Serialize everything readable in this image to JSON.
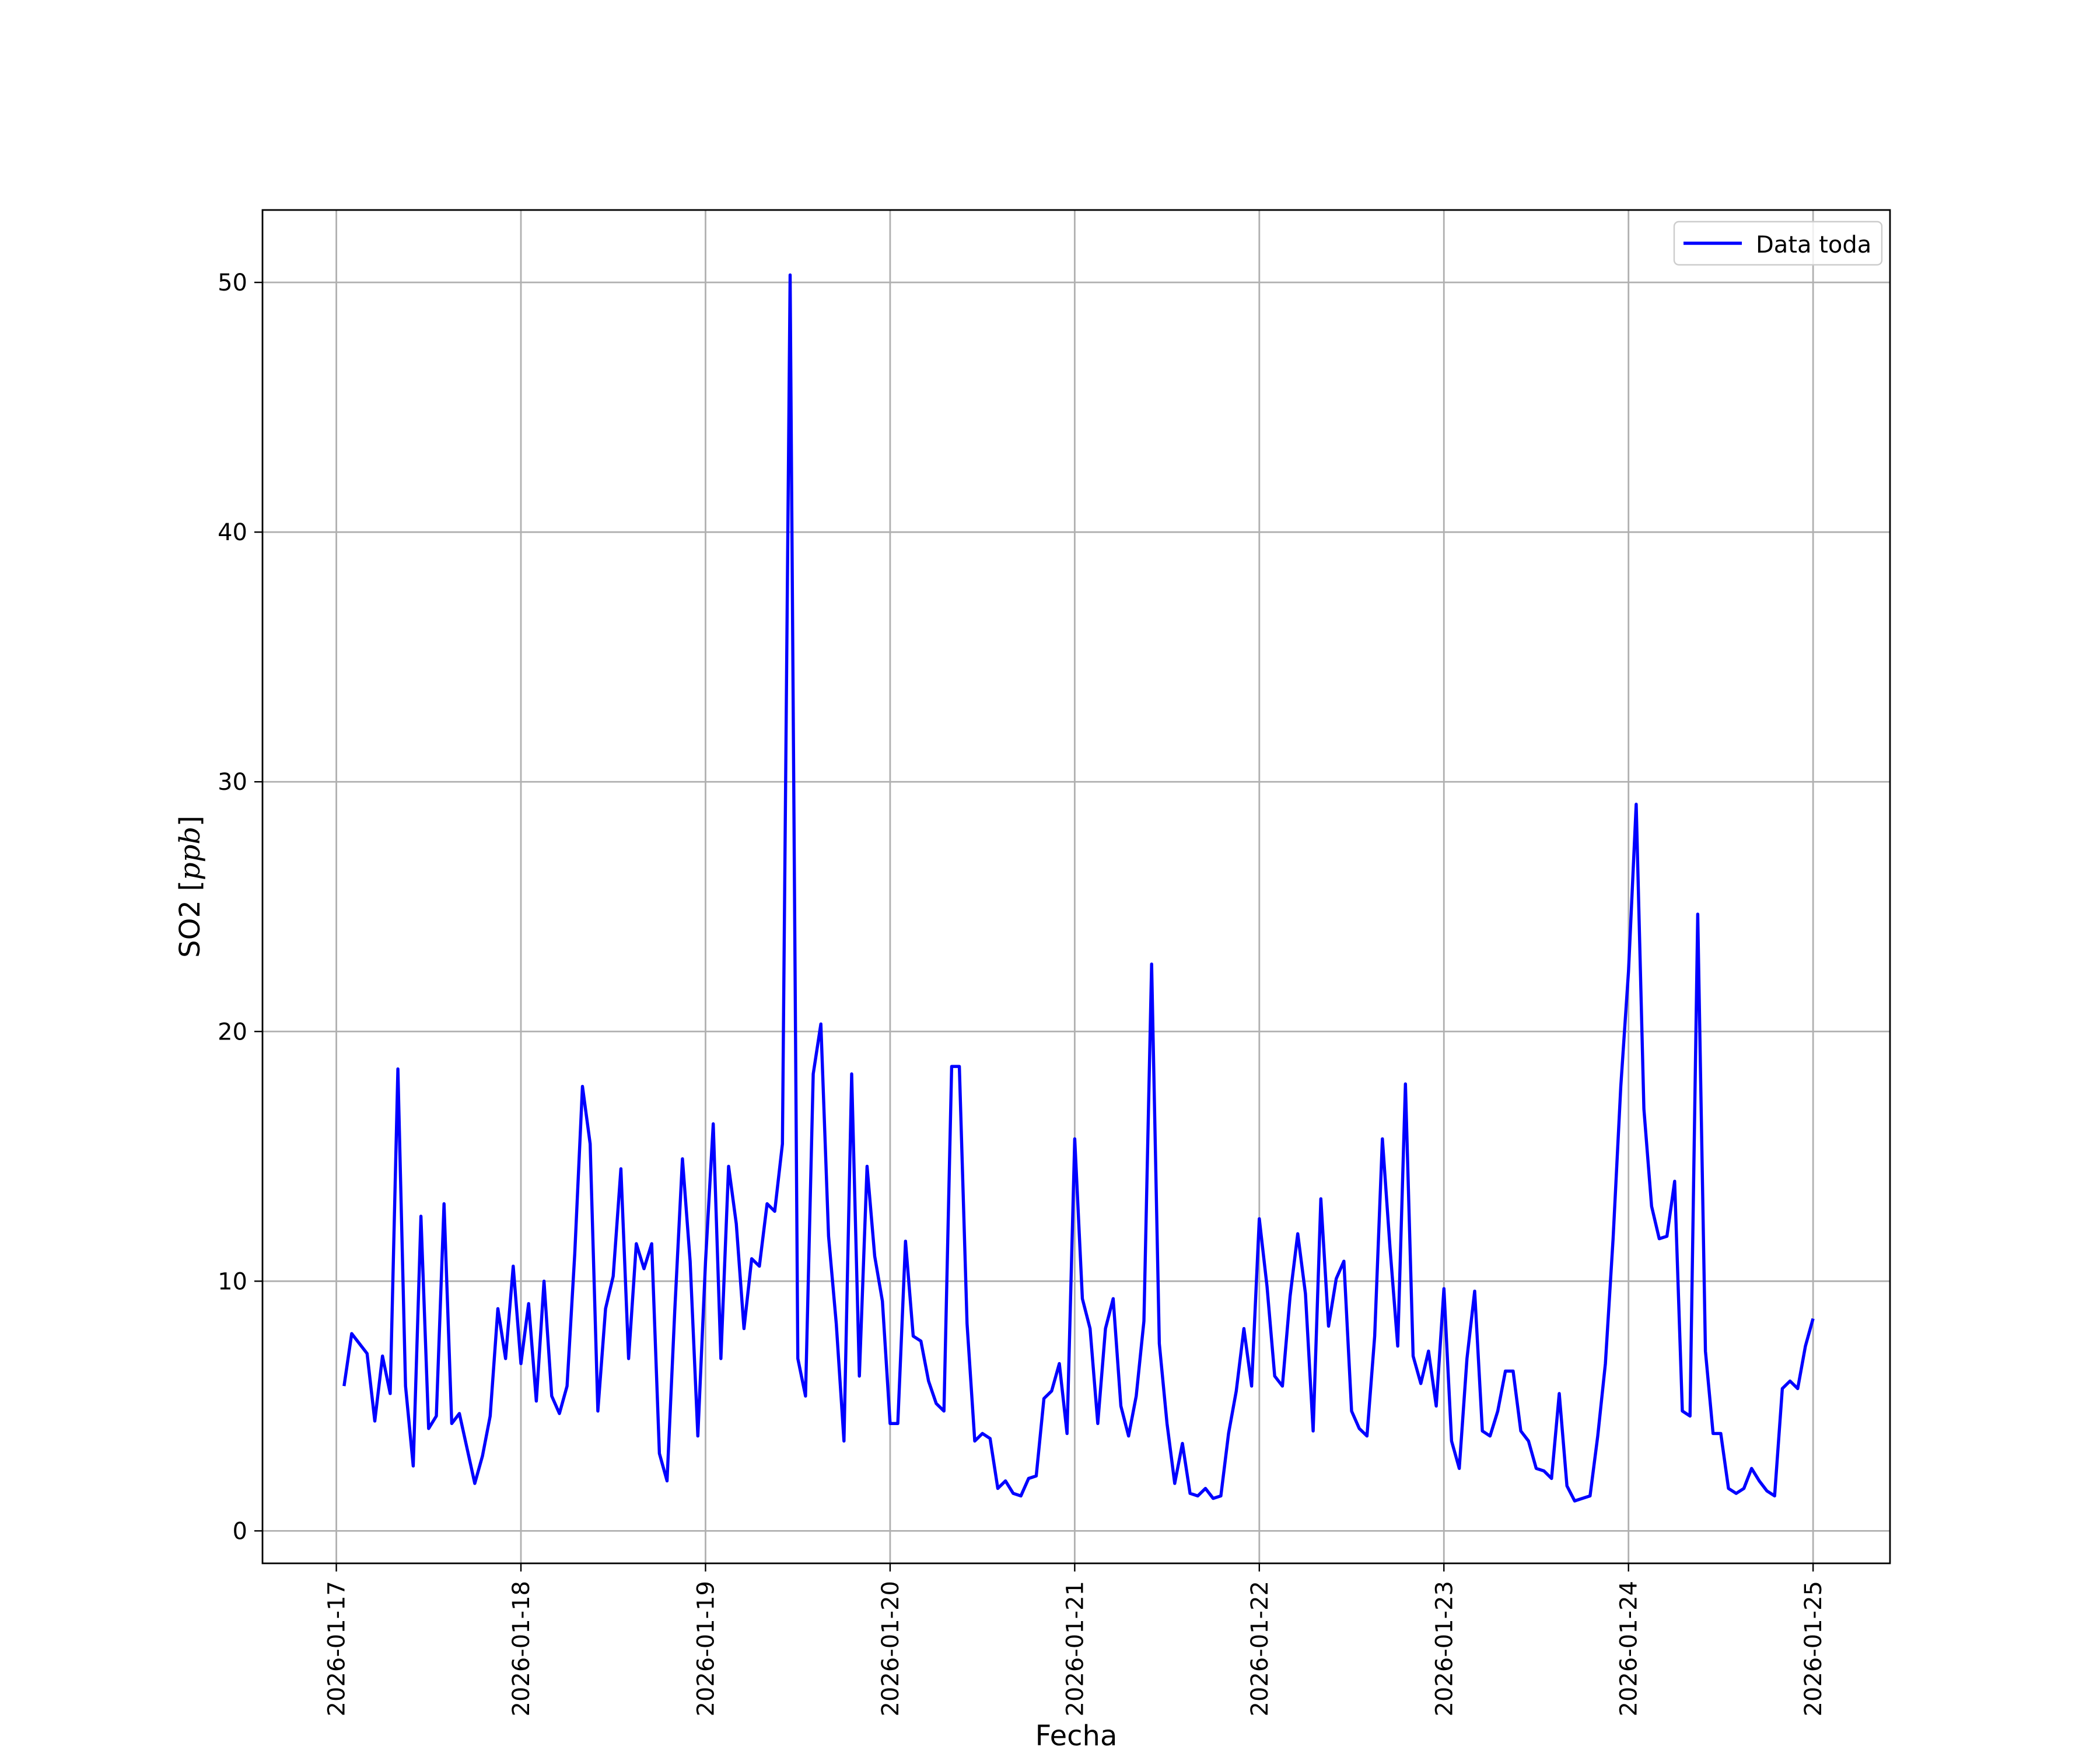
{
  "chart_data": {
    "type": "line",
    "title": "",
    "xlabel": "Fecha",
    "ylabel_main": "SO2 [",
    "ylabel_unit": "ppb",
    "ylabel_close": "]",
    "ylim": [
      -1.3,
      52.9
    ],
    "xlim": [
      "2026-01-16 14:24",
      "2026-01-25 10:00"
    ],
    "yticks": [
      0,
      10,
      20,
      30,
      40,
      50
    ],
    "yticklabels": [
      "0",
      "10",
      "20",
      "30",
      "40",
      "50"
    ],
    "xticks": [
      "2026-01-17",
      "2026-01-18",
      "2026-01-19",
      "2026-01-20",
      "2026-01-21",
      "2026-01-22",
      "2026-01-23",
      "2026-01-24",
      "2026-01-25"
    ],
    "grid": true,
    "legend_position": "upper right",
    "colors": {
      "series": "#0000ff",
      "frame": "#000000",
      "grid": "#b0b0b0"
    },
    "series": [
      {
        "name": "Data toda",
        "x": [
          "2026-01-17 01:00",
          "2026-01-17 02:00",
          "2026-01-17 03:00",
          "2026-01-17 04:00",
          "2026-01-17 05:00",
          "2026-01-17 06:00",
          "2026-01-17 07:00",
          "2026-01-17 08:00",
          "2026-01-17 09:00",
          "2026-01-17 10:00",
          "2026-01-17 11:00",
          "2026-01-17 12:00",
          "2026-01-17 13:00",
          "2026-01-17 14:00",
          "2026-01-17 15:00",
          "2026-01-17 16:00",
          "2026-01-17 17:00",
          "2026-01-17 18:00",
          "2026-01-17 19:00",
          "2026-01-17 20:00",
          "2026-01-17 21:00",
          "2026-01-17 22:00",
          "2026-01-17 23:00",
          "2026-01-18 00:00",
          "2026-01-18 01:00",
          "2026-01-18 02:00",
          "2026-01-18 03:00",
          "2026-01-18 04:00",
          "2026-01-18 05:00",
          "2026-01-18 06:00",
          "2026-01-18 07:00",
          "2026-01-18 08:00",
          "2026-01-18 09:00",
          "2026-01-18 10:00",
          "2026-01-18 11:00",
          "2026-01-18 12:00",
          "2026-01-18 13:00",
          "2026-01-18 14:00",
          "2026-01-18 15:00",
          "2026-01-18 16:00",
          "2026-01-18 17:00",
          "2026-01-18 18:00",
          "2026-01-18 19:00",
          "2026-01-18 20:00",
          "2026-01-18 21:00",
          "2026-01-18 22:00",
          "2026-01-18 23:00",
          "2026-01-19 00:00",
          "2026-01-19 01:00",
          "2026-01-19 02:00",
          "2026-01-19 03:00",
          "2026-01-19 04:00",
          "2026-01-19 05:00",
          "2026-01-19 06:00",
          "2026-01-19 07:00",
          "2026-01-19 08:00",
          "2026-01-19 09:00",
          "2026-01-19 10:00",
          "2026-01-19 11:00",
          "2026-01-19 12:00",
          "2026-01-19 13:00",
          "2026-01-19 14:00",
          "2026-01-19 15:00",
          "2026-01-19 16:00",
          "2026-01-19 17:00",
          "2026-01-19 18:00",
          "2026-01-19 19:00",
          "2026-01-19 20:00",
          "2026-01-19 21:00",
          "2026-01-19 22:00",
          "2026-01-19 23:00",
          "2026-01-20 00:00",
          "2026-01-20 01:00",
          "2026-01-20 02:00",
          "2026-01-20 03:00",
          "2026-01-20 04:00",
          "2026-01-20 05:00",
          "2026-01-20 06:00",
          "2026-01-20 07:00",
          "2026-01-20 08:00",
          "2026-01-20 09:00",
          "2026-01-20 10:00",
          "2026-01-20 11:00",
          "2026-01-20 12:00",
          "2026-01-20 13:00",
          "2026-01-20 14:00",
          "2026-01-20 15:00",
          "2026-01-20 16:00",
          "2026-01-20 17:00",
          "2026-01-20 18:00",
          "2026-01-20 19:00",
          "2026-01-20 20:00",
          "2026-01-20 21:00",
          "2026-01-20 22:00",
          "2026-01-20 23:00",
          "2026-01-21 00:00",
          "2026-01-21 01:00",
          "2026-01-21 02:00",
          "2026-01-21 03:00",
          "2026-01-21 04:00",
          "2026-01-21 05:00",
          "2026-01-21 06:00",
          "2026-01-21 07:00",
          "2026-01-21 08:00",
          "2026-01-21 09:00",
          "2026-01-21 10:00",
          "2026-01-21 11:00",
          "2026-01-21 12:00",
          "2026-01-21 13:00",
          "2026-01-21 14:00",
          "2026-01-21 15:00",
          "2026-01-21 16:00",
          "2026-01-21 17:00",
          "2026-01-21 18:00",
          "2026-01-21 19:00",
          "2026-01-21 20:00",
          "2026-01-21 21:00",
          "2026-01-21 22:00",
          "2026-01-21 23:00",
          "2026-01-22 00:00",
          "2026-01-22 01:00",
          "2026-01-22 02:00",
          "2026-01-22 03:00",
          "2026-01-22 04:00",
          "2026-01-22 05:00",
          "2026-01-22 06:00",
          "2026-01-22 07:00",
          "2026-01-22 08:00",
          "2026-01-22 09:00",
          "2026-01-22 10:00",
          "2026-01-22 11:00",
          "2026-01-22 12:00",
          "2026-01-22 13:00",
          "2026-01-22 14:00",
          "2026-01-22 15:00",
          "2026-01-22 16:00",
          "2026-01-22 17:00",
          "2026-01-22 18:00",
          "2026-01-22 19:00",
          "2026-01-22 20:00",
          "2026-01-22 21:00",
          "2026-01-22 22:00",
          "2026-01-22 23:00",
          "2026-01-23 00:00",
          "2026-01-23 01:00",
          "2026-01-23 02:00",
          "2026-01-23 03:00",
          "2026-01-23 04:00",
          "2026-01-23 05:00",
          "2026-01-23 06:00",
          "2026-01-23 07:00",
          "2026-01-23 08:00",
          "2026-01-23 09:00",
          "2026-01-23 10:00",
          "2026-01-23 11:00",
          "2026-01-23 12:00",
          "2026-01-23 13:00",
          "2026-01-23 14:00",
          "2026-01-23 15:00",
          "2026-01-23 16:00",
          "2026-01-23 17:00",
          "2026-01-23 18:00",
          "2026-01-23 19:00",
          "2026-01-23 20:00",
          "2026-01-23 21:00",
          "2026-01-23 22:00",
          "2026-01-23 23:00",
          "2026-01-24 00:00",
          "2026-01-24 01:00",
          "2026-01-24 02:00",
          "2026-01-24 03:00",
          "2026-01-24 04:00",
          "2026-01-24 05:00",
          "2026-01-24 06:00",
          "2026-01-24 07:00",
          "2026-01-24 08:00",
          "2026-01-24 09:00",
          "2026-01-24 10:00",
          "2026-01-24 11:00",
          "2026-01-24 12:00",
          "2026-01-24 13:00",
          "2026-01-24 14:00",
          "2026-01-24 15:00",
          "2026-01-24 16:00",
          "2026-01-24 17:00",
          "2026-01-24 18:00",
          "2026-01-24 19:00",
          "2026-01-24 20:00",
          "2026-01-24 21:00",
          "2026-01-24 22:00",
          "2026-01-24 23:00",
          "2026-01-25 00:00"
        ],
        "values": [
          5.8,
          7.9,
          7.5,
          7.1,
          4.4,
          7.0,
          5.5,
          18.5,
          5.8,
          2.6,
          12.6,
          4.1,
          4.6,
          13.1,
          4.3,
          4.7,
          3.3,
          1.9,
          3.0,
          4.6,
          8.9,
          6.9,
          10.6,
          6.7,
          9.1,
          5.2,
          10.0,
          5.4,
          4.7,
          5.8,
          11.1,
          17.8,
          15.5,
          4.8,
          8.9,
          10.2,
          14.5,
          6.9,
          11.5,
          10.5,
          11.5,
          3.1,
          2.0,
          8.8,
          14.9,
          10.8,
          3.8,
          10.8,
          16.3,
          6.9,
          14.6,
          12.3,
          8.1,
          10.9,
          10.6,
          13.1,
          12.8,
          15.5,
          50.3,
          6.9,
          5.4,
          18.3,
          20.3,
          11.8,
          8.3,
          3.6,
          18.3,
          6.2,
          14.6,
          11.0,
          9.2,
          4.3,
          4.3,
          11.6,
          7.8,
          7.6,
          6.0,
          5.1,
          4.8,
          18.6,
          18.6,
          8.3,
          3.6,
          3.9,
          3.7,
          1.7,
          2.0,
          1.5,
          1.4,
          2.1,
          2.2,
          5.3,
          5.6,
          6.7,
          3.9,
          15.7,
          9.3,
          8.1,
          4.3,
          8.1,
          9.3,
          5.0,
          3.8,
          5.4,
          8.4,
          22.7,
          7.5,
          4.3,
          1.9,
          3.5,
          1.5,
          1.4,
          1.7,
          1.3,
          1.4,
          3.9,
          5.6,
          8.1,
          5.8,
          12.5,
          9.8,
          6.2,
          5.8,
          9.4,
          11.9,
          9.5,
          4.0,
          13.3,
          8.2,
          10.1,
          10.8,
          4.8,
          4.1,
          3.8,
          7.8,
          15.7,
          11.3,
          7.4,
          17.9,
          7.0,
          5.9,
          7.2,
          5.0,
          9.7,
          3.6,
          2.5,
          6.9,
          9.6,
          4.0,
          3.8,
          4.8,
          6.4,
          6.4,
          4.0,
          3.6,
          2.5,
          2.4,
          2.1,
          5.5,
          1.8,
          1.2,
          1.3,
          1.4,
          3.8,
          6.7,
          11.7,
          17.8,
          22.4,
          29.1,
          16.9,
          13.0,
          11.7,
          11.8,
          14.0,
          4.8,
          4.6,
          24.7,
          7.2,
          3.9,
          3.9,
          1.7,
          1.5,
          1.7,
          2.5,
          2.0,
          1.6,
          1.4,
          5.7,
          6.0,
          5.7,
          7.4,
          8.5
        ]
      }
    ]
  }
}
